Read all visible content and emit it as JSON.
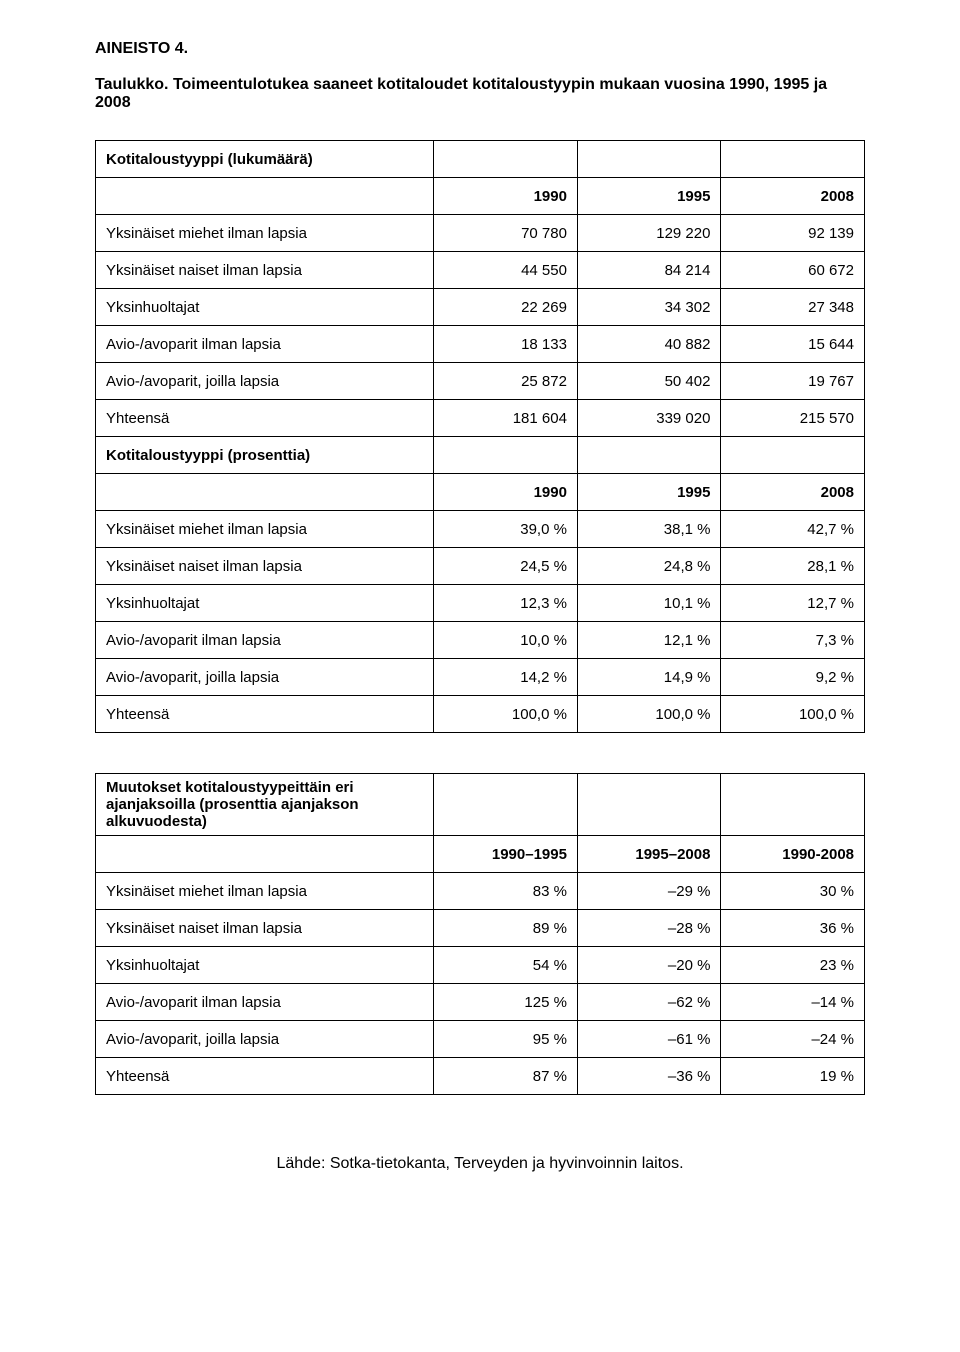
{
  "heading": "AINEISTO 4.",
  "tableLabel": "Taulukko. Toimeentulotukea saaneet kotitaloudet kotitaloustyypin mukaan vuosina 1990, 1995 ja 2008",
  "table1": {
    "headerRow1": "Kotitaloustyyppi (lukumäärä)",
    "cols": [
      "1990",
      "1995",
      "2008"
    ],
    "rows": [
      {
        "label": "Yksinäiset miehet ilman lapsia",
        "vals": [
          "70 780",
          "129 220",
          "92 139"
        ]
      },
      {
        "label": "Yksinäiset naiset ilman lapsia",
        "vals": [
          "44 550",
          "84 214",
          "60 672"
        ]
      },
      {
        "label": "Yksinhuoltajat",
        "vals": [
          "22 269",
          "34 302",
          "27 348"
        ]
      },
      {
        "label": "Avio-/avoparit ilman lapsia",
        "vals": [
          "18 133",
          "40 882",
          "15 644"
        ]
      },
      {
        "label": "Avio-/avoparit, joilla lapsia",
        "vals": [
          "25 872",
          "50 402",
          "19 767"
        ]
      },
      {
        "label": "Yhteensä",
        "vals": [
          "181 604",
          "339 020",
          "215 570"
        ]
      }
    ],
    "headerRow2": "Kotitaloustyyppi (prosenttia)",
    "cols2": [
      "1990",
      "1995",
      "2008"
    ],
    "rows2": [
      {
        "label": "Yksinäiset miehet ilman lapsia",
        "vals": [
          "39,0 %",
          "38,1 %",
          "42,7 %"
        ]
      },
      {
        "label": "Yksinäiset naiset ilman lapsia",
        "vals": [
          "24,5 %",
          "24,8 %",
          "28,1 %"
        ]
      },
      {
        "label": "Yksinhuoltajat",
        "vals": [
          "12,3 %",
          "10,1 %",
          "12,7 %"
        ]
      },
      {
        "label": "Avio-/avoparit ilman lapsia",
        "vals": [
          "10,0 %",
          "12,1 %",
          "7,3 %"
        ]
      },
      {
        "label": "Avio-/avoparit, joilla lapsia",
        "vals": [
          "14,2 %",
          "14,9 %",
          "9,2 %"
        ]
      },
      {
        "label": "Yhteensä",
        "vals": [
          "100,0 %",
          "100,0 %",
          "100,0 %"
        ]
      }
    ]
  },
  "table2": {
    "header": "Muutokset kotitaloustyypeittäin eri ajanjaksoilla (prosenttia ajanjakson alkuvuodesta)",
    "cols": [
      "1990–1995",
      "1995–2008",
      "1990-2008"
    ],
    "rows": [
      {
        "label": "Yksinäiset miehet ilman lapsia",
        "vals": [
          "83 %",
          "–29 %",
          "30 %"
        ]
      },
      {
        "label": "Yksinäiset naiset ilman lapsia",
        "vals": [
          "89 %",
          "–28 %",
          "36 %"
        ]
      },
      {
        "label": "Yksinhuoltajat",
        "vals": [
          "54 %",
          "–20 %",
          "23 %"
        ]
      },
      {
        "label": "Avio-/avoparit ilman lapsia",
        "vals": [
          "125 %",
          "–62 %",
          "–14 %"
        ]
      },
      {
        "label": "Avio-/avoparit, joilla lapsia",
        "vals": [
          "95 %",
          "–61 %",
          "–24 %"
        ]
      },
      {
        "label": "Yhteensä",
        "vals": [
          "87 %",
          "–36 %",
          "19 %"
        ]
      }
    ]
  },
  "source": "Lähde: Sotka-tietokanta, Terveyden ja hyvinvoinnin laitos."
}
